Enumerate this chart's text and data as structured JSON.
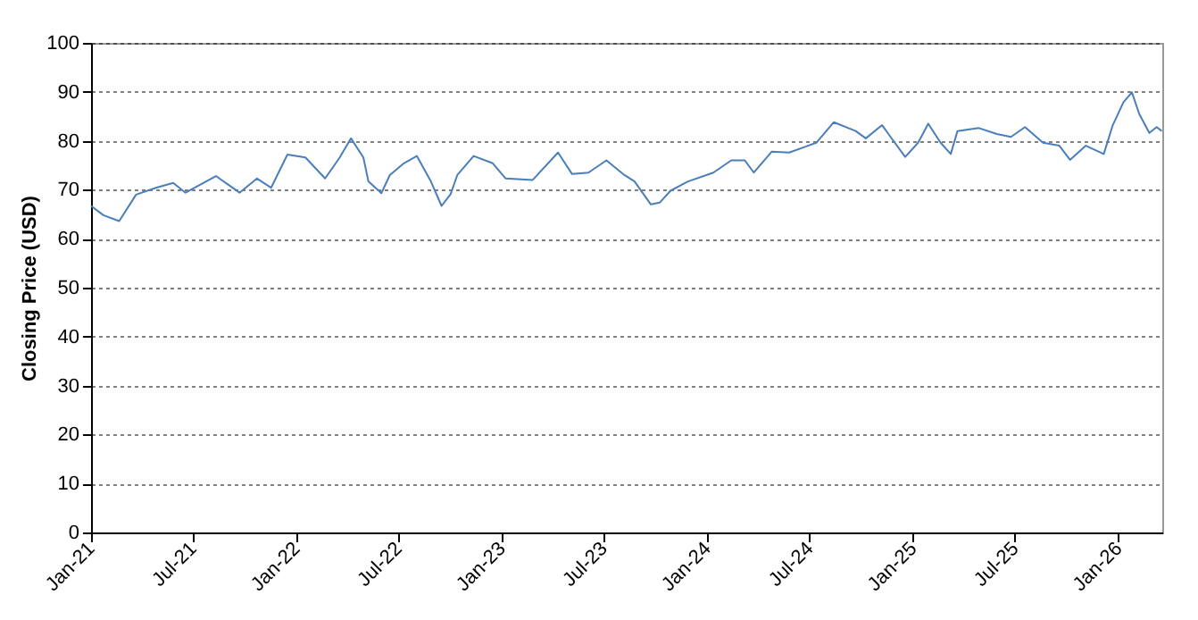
{
  "chart_data": {
    "type": "line",
    "ylabel": "Closing Price (USD)",
    "x": [
      "2021-01-01",
      "2021-01-23",
      "2021-02-20",
      "2021-03-22",
      "2021-04-26",
      "2021-05-27",
      "2021-06-18",
      "2021-08-11",
      "2021-09-22",
      "2021-10-23",
      "2021-11-17",
      "2021-12-16",
      "2022-01-17",
      "2022-02-21",
      "2022-03-19",
      "2022-04-08",
      "2022-04-30",
      "2022-05-09",
      "2022-06-01",
      "2022-06-16",
      "2022-07-11",
      "2022-08-03",
      "2022-08-28",
      "2022-09-16",
      "2022-10-02",
      "2022-10-14",
      "2022-11-12",
      "2022-12-16",
      "2023-01-08",
      "2023-02-25",
      "2023-04-11",
      "2023-05-06",
      "2023-06-04",
      "2023-07-06",
      "2023-08-07",
      "2023-08-25",
      "2023-09-23",
      "2023-10-09",
      "2023-10-28",
      "2023-11-28",
      "2024-01-12",
      "2024-02-13",
      "2024-03-08",
      "2024-03-24",
      "2024-04-25",
      "2024-05-26",
      "2024-06-24",
      "2024-07-13",
      "2024-08-13",
      "2024-09-21",
      "2024-10-09",
      "2024-11-07",
      "2024-11-22",
      "2024-12-18",
      "2025-01-10",
      "2025-01-28",
      "2025-02-19",
      "2025-03-09",
      "2025-03-21",
      "2025-04-28",
      "2025-05-30",
      "2025-06-24",
      "2025-07-19",
      "2025-08-20",
      "2025-09-18",
      "2025-10-07",
      "2025-11-04",
      "2025-12-06",
      "2025-12-22",
      "2026-01-10",
      "2026-01-25",
      "2026-02-07",
      "2026-02-25",
      "2026-03-10",
      "2026-03-19"
    ],
    "series": [
      {
        "color": "#4a7ebb",
        "values": [
          66.7,
          64.8,
          63.6,
          69,
          70.4,
          71.4,
          69.4,
          72.8,
          69.4,
          72.3,
          70.4,
          77.2,
          76.6,
          72.3,
          76.6,
          80.5,
          76.6,
          71.7,
          69.3,
          73,
          75.4,
          76.9,
          71.7,
          66.7,
          69.1,
          73,
          76.9,
          75.4,
          72.3,
          72,
          77.6,
          73.2,
          73.5,
          76,
          73,
          71.7,
          67,
          67.4,
          69.8,
          71.7,
          73.5,
          76,
          76,
          73.5,
          77.8,
          77.6,
          78.8,
          79.6,
          83.8,
          82,
          80.5,
          83.2,
          80.8,
          76.7,
          79.6,
          83.5,
          79.6,
          77.3,
          82,
          82.6,
          81.4,
          80.8,
          82.8,
          79.6,
          79,
          76.1,
          79,
          77.3,
          83.2,
          87.9,
          89.9,
          85.5,
          81.6,
          82.8,
          82
        ]
      }
    ],
    "xlim": [
      "2021-01-01",
      "2026-03-20"
    ],
    "xticks": [
      {
        "value": "2021-01-01",
        "label": "Jan-21"
      },
      {
        "value": "2021-07-01",
        "label": "Jul-21"
      },
      {
        "value": "2022-01-01",
        "label": "Jan-22"
      },
      {
        "value": "2022-07-01",
        "label": "Jul-22"
      },
      {
        "value": "2023-01-01",
        "label": "Jan-23"
      },
      {
        "value": "2023-07-01",
        "label": "Jul-23"
      },
      {
        "value": "2024-01-01",
        "label": "Jan-24"
      },
      {
        "value": "2024-07-01",
        "label": "Jul-24"
      },
      {
        "value": "2025-01-01",
        "label": "Jan-25"
      },
      {
        "value": "2025-07-01",
        "label": "Jul-25"
      },
      {
        "value": "2026-01-01",
        "label": "Jan-26"
      }
    ],
    "ylim": [
      0,
      100
    ],
    "yticks": [
      0,
      10,
      20,
      30,
      40,
      50,
      60,
      70,
      80,
      90,
      100
    ],
    "grid": "y",
    "legend": false,
    "marker": "none",
    "line_style": "solid"
  }
}
